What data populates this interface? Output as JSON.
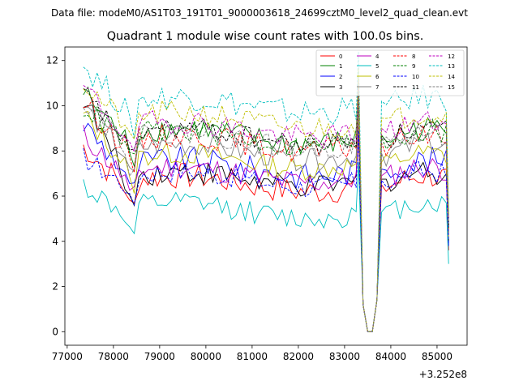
{
  "chart_data": {
    "type": "line",
    "suptitle": "Data file: modeM0/AS1T03_191T01_9000003618_24699cztM0_level2_quad_clean.evt",
    "title": "Quadrant 1 module wise count rates with 100.0s bins.",
    "xlabel": "",
    "ylabel": "",
    "x_offset_label": "+3.252e8",
    "x_offset": 325200000,
    "x_ticks": [
      77000,
      78000,
      79000,
      80000,
      81000,
      82000,
      83000,
      84000,
      85000
    ],
    "y_ticks": [
      0,
      2,
      4,
      6,
      8,
      10,
      12
    ],
    "xlim": [
      76950,
      85650
    ],
    "ylim": [
      -0.6,
      12.6
    ],
    "x_range": [
      77350,
      85250
    ],
    "dip_x": [
      83300,
      83400,
      83500,
      83600,
      83700,
      83800
    ],
    "dip_values": [
      6.5,
      1.2,
      0.0,
      0.0,
      1.4,
      7.8
    ],
    "legend_location": "upper right",
    "series": [
      {
        "name": "0",
        "color": "#ff0000",
        "dash": "solid",
        "start": 8.2,
        "end": 3.6,
        "mean": 6.8,
        "amplitude": 0.6,
        "dip_bias": 0.0
      },
      {
        "name": "1",
        "color": "#008000",
        "dash": "solid",
        "start": 10.6,
        "end": 4.4,
        "mean": 8.9,
        "amplitude": 0.55,
        "dip_bias": 0.1
      },
      {
        "name": "2",
        "color": "#0000ff",
        "dash": "solid",
        "start": 9.2,
        "end": 3.8,
        "mean": 7.5,
        "amplitude": 0.6,
        "dip_bias": 0.0
      },
      {
        "name": "3",
        "color": "#000000",
        "dash": "solid",
        "start": 10.4,
        "end": 4.0,
        "mean": 7.0,
        "amplitude": 0.55,
        "dip_bias": 0.05
      },
      {
        "name": "4",
        "color": "#bf00bf",
        "dash": "solid",
        "start": 8.7,
        "end": 4.2,
        "mean": 7.2,
        "amplitude": 0.55,
        "dip_bias": 0.0
      },
      {
        "name": "5",
        "color": "#00bfbf",
        "dash": "solid",
        "start": 6.5,
        "end": 3.0,
        "mean": 5.6,
        "amplitude": 0.5,
        "dip_bias": 0.0
      },
      {
        "name": "6",
        "color": "#bfbf00",
        "dash": "solid",
        "start": 9.6,
        "end": 4.1,
        "mean": 7.8,
        "amplitude": 0.5,
        "dip_bias": 0.0
      },
      {
        "name": "7",
        "color": "#808080",
        "dash": "solid",
        "start": 10.0,
        "end": 4.3,
        "mean": 8.2,
        "amplitude": 0.5,
        "dip_bias": 0.0
      },
      {
        "name": "8",
        "color": "#ff0000",
        "dash": "dashed",
        "start": 10.2,
        "end": 4.5,
        "mean": 8.6,
        "amplitude": 0.55,
        "dip_bias": 0.05
      },
      {
        "name": "9",
        "color": "#008000",
        "dash": "dashed",
        "start": 10.0,
        "end": 4.6,
        "mean": 8.8,
        "amplitude": 0.55,
        "dip_bias": 0.1
      },
      {
        "name": "10",
        "color": "#0000ff",
        "dash": "dashed",
        "start": 7.7,
        "end": 3.9,
        "mean": 7.0,
        "amplitude": 0.5,
        "dip_bias": 0.0
      },
      {
        "name": "11",
        "color": "#000000",
        "dash": "dashed",
        "start": 10.5,
        "end": 4.7,
        "mean": 8.9,
        "amplitude": 0.5,
        "dip_bias": 0.05
      },
      {
        "name": "12",
        "color": "#bf00bf",
        "dash": "dashed",
        "start": 10.8,
        "end": 5.0,
        "mean": 9.2,
        "amplitude": 0.55,
        "dip_bias": 0.1
      },
      {
        "name": "13",
        "color": "#00bfbf",
        "dash": "dashed",
        "start": 11.8,
        "end": 5.3,
        "mean": 10.3,
        "amplitude": 0.6,
        "dip_bias": 0.2
      },
      {
        "name": "14",
        "color": "#bfbf00",
        "dash": "dashed",
        "start": 11.0,
        "end": 5.2,
        "mean": 9.6,
        "amplitude": 0.55,
        "dip_bias": 0.15
      },
      {
        "name": "15",
        "color": "#808080",
        "dash": "dashed",
        "start": 10.3,
        "end": 4.8,
        "mean": 8.7,
        "amplitude": 0.5,
        "dip_bias": 0.05
      }
    ]
  }
}
